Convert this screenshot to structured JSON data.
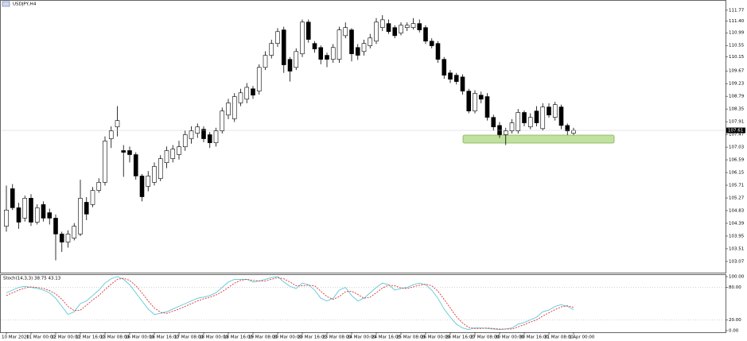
{
  "chart_data": [
    {
      "type": "candlestick",
      "title": "USDJPY,H4",
      "categories": [
        "10 Mar 2020",
        null,
        null,
        null,
        "11 Mar 00:00",
        null,
        null,
        null,
        "12 Mar 00:00",
        null,
        null,
        null,
        "12 Mar 16:00",
        null,
        null,
        null,
        "13 Mar 08:00",
        null,
        null,
        null,
        "16 Mar 00:00",
        null,
        null,
        null,
        "16 Mar 16:00",
        null,
        null,
        null,
        "17 Mar 08:00",
        null,
        null,
        null,
        "18 Mar 00:00",
        null,
        null,
        null,
        "18 Mar 16:00",
        null,
        null,
        null,
        "19 Mar 08:00",
        null,
        null,
        null,
        "20 Mar 00:00",
        null,
        null,
        null,
        "20 Mar 16:00",
        null,
        null,
        null,
        "23 Mar 08:00",
        null,
        null,
        null,
        "24 Mar 00:00",
        null,
        null,
        null,
        "24 Mar 16:00",
        null,
        null,
        null,
        "25 Mar 08:00",
        null,
        null,
        null,
        "26 Mar 00:00",
        null,
        null,
        null,
        "26 Mar 16:00",
        null,
        null,
        null,
        "27 Mar 08:00",
        null,
        null,
        null,
        "30 Mar 00:00",
        null,
        null,
        null,
        "30 Mar 16:00",
        null,
        null,
        null,
        "31 Mar 08:00",
        null,
        null,
        null,
        "1 Apr 00:00"
      ],
      "open": [
        104.29,
        105.59,
        104.93,
        104.57,
        105.26,
        104.43,
        105.04,
        104.76,
        104.57,
        104.02,
        103.74,
        103.88,
        104.02,
        105.12,
        105.04,
        105.53,
        105.81,
        107.32,
        107.73,
        106.91,
        106.91,
        106.77,
        106.03,
        105.67,
        105.81,
        105.94,
        106.49,
        106.63,
        106.77,
        107.04,
        107.32,
        107.51,
        107.65,
        107.46,
        107.18,
        107.59,
        108.14,
        108.01,
        108.56,
        108.69,
        109.05,
        108.97,
        109.79,
        110.21,
        110.62,
        111.09,
        110.07,
        109.79,
        110.26,
        111.36,
        110.62,
        110.48,
        110.21,
        110.07,
        110.07,
        110.89,
        111.09,
        110.48,
        110.34,
        110.54,
        110.7,
        111.17,
        111.31,
        111.17,
        110.98,
        111.17,
        111.17,
        111.31,
        111.17,
        110.7,
        110.62,
        110.07,
        109.6,
        109.52,
        109.46,
        108.97,
        108.28,
        108.83,
        108.78,
        108.06,
        107.78,
        107.46,
        107.59,
        107.59,
        108.23,
        107.73,
        108.28,
        107.67,
        108.42,
        108.06,
        108.42,
        107.78,
        107.51
      ],
      "high": [
        105.7,
        105.75,
        105.1,
        105.35,
        105.4,
        105.05,
        105.15,
        104.9,
        104.7,
        104.1,
        104.15,
        104.4,
        105.9,
        105.3,
        105.65,
        105.95,
        107.4,
        107.75,
        108.45,
        107.1,
        107.05,
        106.85,
        106.1,
        106.2,
        106.5,
        106.75,
        107.05,
        107.1,
        107.25,
        107.6,
        107.75,
        107.85,
        107.75,
        107.55,
        107.7,
        108.4,
        108.7,
        108.9,
        109.05,
        109.25,
        109.15,
        109.9,
        110.35,
        110.75,
        111.15,
        111.2,
        110.15,
        110.45,
        111.45,
        111.45,
        110.7,
        110.55,
        110.3,
        110.6,
        111.2,
        111.35,
        111.15,
        110.6,
        110.75,
        110.95,
        111.5,
        111.6,
        111.45,
        111.25,
        111.35,
        111.35,
        111.5,
        111.45,
        111.25,
        110.8,
        110.7,
        110.15,
        109.7,
        109.6,
        109.55,
        109.05,
        109.0,
        108.95,
        108.9,
        108.15,
        107.9,
        107.7,
        108.0,
        108.35,
        108.3,
        108.2,
        108.45,
        108.55,
        108.55,
        108.6,
        108.5,
        107.85,
        107.7
      ],
      "low": [
        104.1,
        104.85,
        104.2,
        104.45,
        104.3,
        104.35,
        104.45,
        104.35,
        103.11,
        103.4,
        103.55,
        103.8,
        103.95,
        104.5,
        104.95,
        105.45,
        105.7,
        107.0,
        107.4,
        106.0,
        106.5,
        105.9,
        105.15,
        105.5,
        105.7,
        105.85,
        106.3,
        106.5,
        106.6,
        106.9,
        107.15,
        107.35,
        107.2,
        107.0,
        107.05,
        107.5,
        108.0,
        107.9,
        108.45,
        108.55,
        108.7,
        108.85,
        109.7,
        110.1,
        110.5,
        109.6,
        109.3,
        109.7,
        110.15,
        110.65,
        110.3,
        109.9,
        109.8,
        109.95,
        109.95,
        110.8,
        110.0,
        110.05,
        110.2,
        110.45,
        110.6,
        111.05,
        110.95,
        110.8,
        110.9,
        111.05,
        111.1,
        111.0,
        110.6,
        110.45,
        109.95,
        109.4,
        109.25,
        109.2,
        108.85,
        108.2,
        108.2,
        108.55,
        107.95,
        107.6,
        107.35,
        107.1,
        107.5,
        107.5,
        107.75,
        107.65,
        107.75,
        107.6,
        108.05,
        107.95,
        107.65,
        107.45,
        107.45
      ],
      "close": [
        104.85,
        104.93,
        104.43,
        105.26,
        104.43,
        104.93,
        104.57,
        104.57,
        104.02,
        103.74,
        104.02,
        104.29,
        105.26,
        104.71,
        105.53,
        105.81,
        107.24,
        107.59,
        107.95,
        106.85,
        106.77,
        106.03,
        105.31,
        106.03,
        106.36,
        106.63,
        106.91,
        106.96,
        107.04,
        107.46,
        107.59,
        107.73,
        107.32,
        107.18,
        107.59,
        108.28,
        108.56,
        108.78,
        108.91,
        109.1,
        108.83,
        109.79,
        110.21,
        110.62,
        111.03,
        109.88,
        109.66,
        110.34,
        111.36,
        110.76,
        110.43,
        110.07,
        110.07,
        110.48,
        111.09,
        111.17,
        110.26,
        110.21,
        110.62,
        110.81,
        111.36,
        111.44,
        111.03,
        110.89,
        111.25,
        111.25,
        111.31,
        111.09,
        110.7,
        110.54,
        110.07,
        109.52,
        109.38,
        109.3,
        108.97,
        108.28,
        108.89,
        108.69,
        108.06,
        107.73,
        107.46,
        107.59,
        107.87,
        108.23,
        107.87,
        108.06,
        107.87,
        108.42,
        108.14,
        108.5,
        107.78,
        107.59,
        107.61
      ],
      "ylim": [
        102.71,
        112.07
      ],
      "yticks": [
        111.77,
        {
          "value": 111.4,
          "label": "111.40"
        },
        110.99,
        110.55,
        110.15,
        109.67,
        109.23,
        108.79,
        108.35,
        107.91,
        107.47,
        107.03,
        106.59,
        106.15,
        105.71,
        105.27,
        104.83,
        104.39,
        103.95,
        103.51,
        103.07
      ],
      "up_color": "#ffffff",
      "down_color": "#000000"
    },
    {
      "type": "line",
      "title": "Stoch(14,3,3) 38.75 43.13",
      "series": [
        {
          "color": "#5ec8d8",
          "dash": false,
          "values": [
            70,
            75,
            80,
            82,
            80,
            78,
            75,
            70,
            60,
            45,
            30,
            35,
            50,
            55,
            65,
            75,
            88,
            96,
            100,
            95,
            85,
            70,
            55,
            40,
            30,
            32,
            35,
            40,
            45,
            50,
            55,
            60,
            62,
            65,
            70,
            80,
            90,
            95,
            95,
            95,
            90,
            92,
            95,
            98,
            100,
            90,
            82,
            78,
            88,
            85,
            75,
            60,
            55,
            60,
            75,
            80,
            65,
            55,
            60,
            70,
            80,
            88,
            85,
            75,
            78,
            80,
            85,
            88,
            85,
            75,
            60,
            40,
            25,
            12,
            5,
            2,
            5,
            5,
            4,
            3,
            2,
            3,
            5,
            12,
            15,
            20,
            25,
            35,
            38,
            45,
            48,
            45,
            38.75
          ]
        },
        {
          "color": "#e03030",
          "dash": true,
          "values": [
            65,
            70,
            75,
            79,
            81,
            80,
            78,
            74,
            68,
            58,
            45,
            37,
            38,
            47,
            57,
            65,
            76,
            86,
            95,
            97,
            93,
            83,
            70,
            55,
            42,
            34,
            32,
            36,
            40,
            45,
            50,
            55,
            59,
            62,
            66,
            72,
            80,
            88,
            93,
            95,
            93,
            92,
            92,
            95,
            98,
            96,
            90,
            83,
            83,
            84,
            83,
            73,
            63,
            58,
            63,
            72,
            73,
            67,
            60,
            62,
            70,
            79,
            84,
            83,
            79,
            78,
            81,
            84,
            86,
            83,
            73,
            58,
            42,
            26,
            14,
            6,
            4,
            4,
            5,
            4,
            3,
            3,
            3,
            7,
            11,
            16,
            20,
            27,
            33,
            39,
            44,
            46,
            43.13
          ]
        }
      ],
      "ylim": [
        0,
        100
      ],
      "yticks": [
        {
          "value": 100,
          "label": "100.00"
        },
        {
          "value": 80,
          "label": "80.00"
        },
        {
          "value": 20,
          "label": "20.00"
        },
        {
          "value": 0,
          "label": "0.00"
        }
      ]
    }
  ]
}
